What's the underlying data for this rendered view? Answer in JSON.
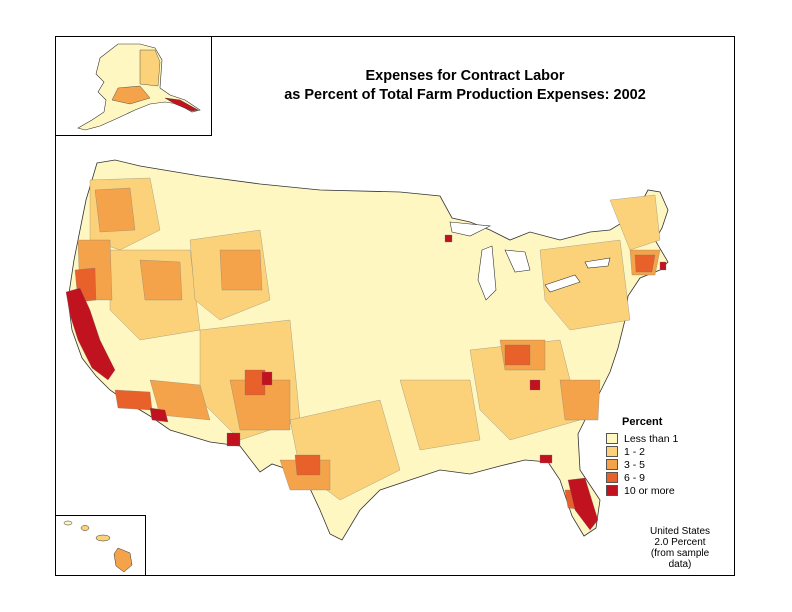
{
  "title": {
    "line1": "Expenses for Contract Labor",
    "line2": "as Percent of Total Farm Production Expenses:  2002"
  },
  "legend": {
    "title": "Percent",
    "items": [
      {
        "label": "Less than 1",
        "color": "#fff7c2"
      },
      {
        "label": "1 - 2",
        "color": "#fbd27a"
      },
      {
        "label": "3 - 5",
        "color": "#f5a34a"
      },
      {
        "label": "6 - 9",
        "color": "#e8602a"
      },
      {
        "label": "10 or more",
        "color": "#c1121f"
      }
    ]
  },
  "us_total": {
    "line1": "United States",
    "line2": "2.0 Percent",
    "line3": "(from sample data)"
  },
  "map": {
    "insets": [
      "Alaska",
      "Hawaii"
    ],
    "high_regions": [
      "California Central Valley",
      "South Florida",
      "Arizona",
      "Washington Yakima",
      "Kentucky/Tennessee tobacco belt"
    ]
  }
}
